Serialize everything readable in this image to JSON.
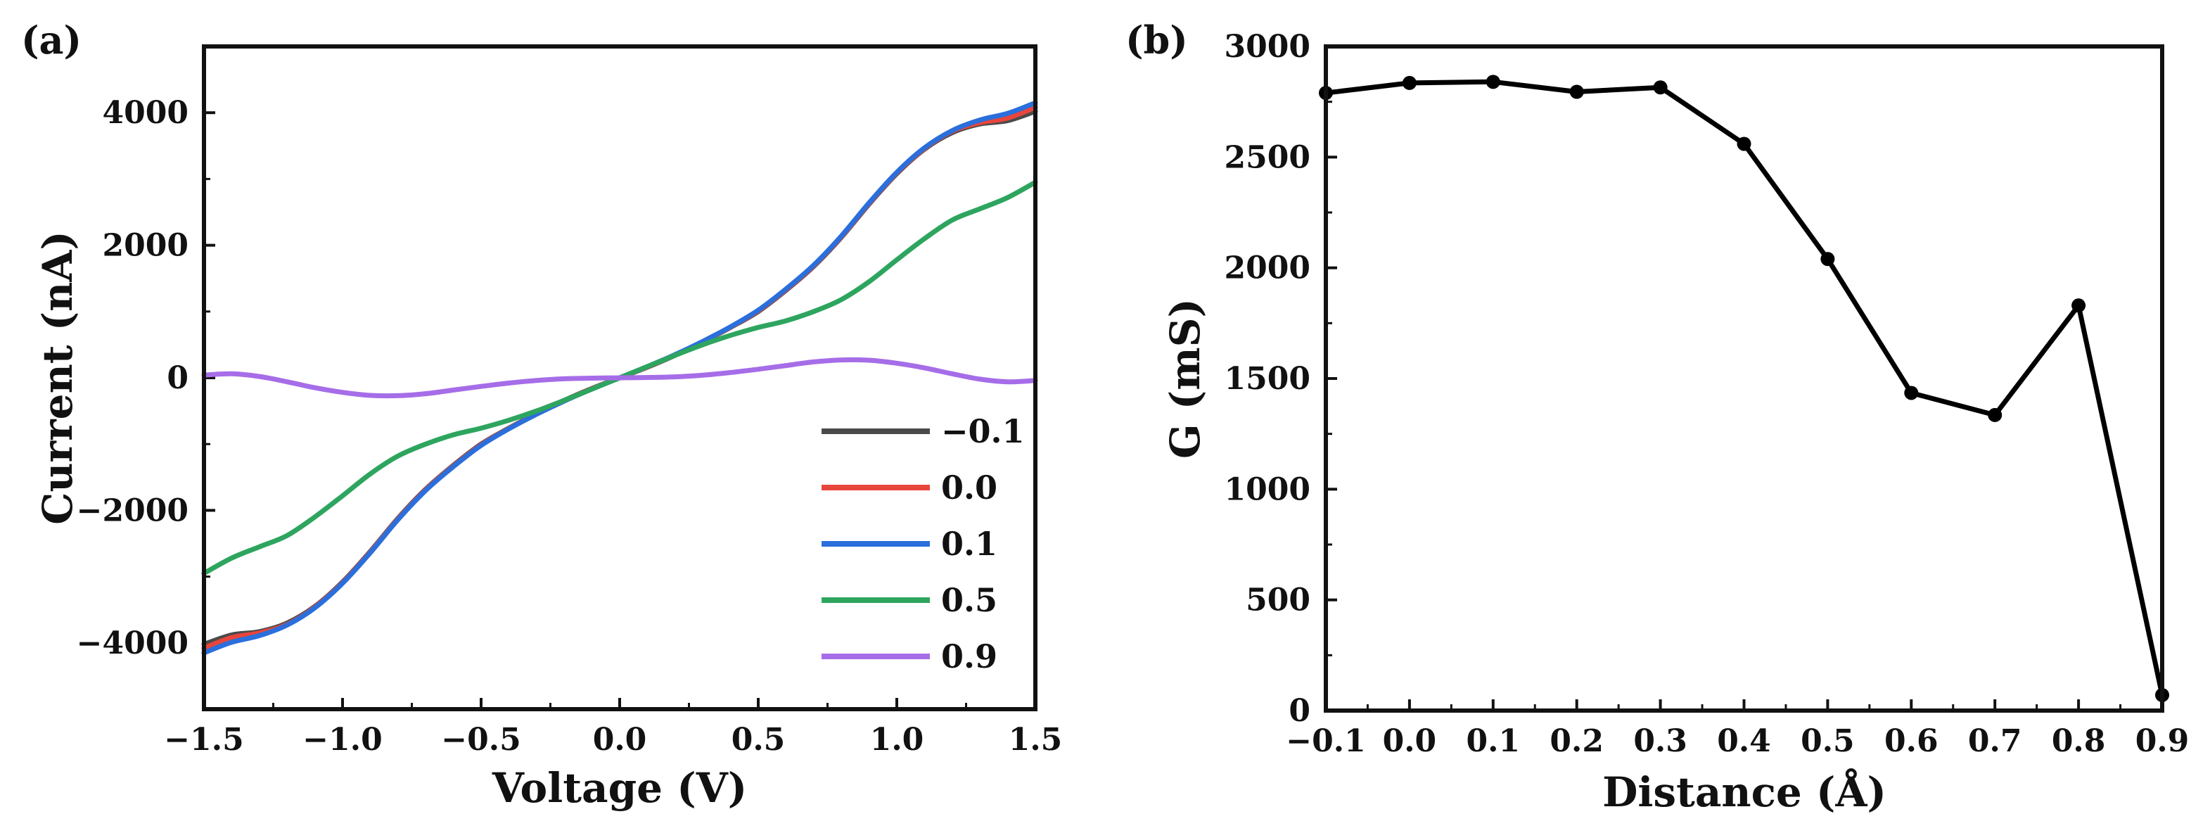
{
  "chart_data": [
    {
      "panel_label": "(a)",
      "type": "line",
      "title": "",
      "xlabel": "Voltage (V)",
      "ylabel": "Current (nA)",
      "xlim": [
        -1.5,
        1.5
      ],
      "ylim": [
        -5000,
        5000
      ],
      "xticks": [
        -1.5,
        -1.0,
        -0.5,
        0.0,
        0.5,
        1.0,
        1.5
      ],
      "xtick_labels": [
        "−1.5",
        "−1.0",
        "−0.5",
        "0.0",
        "0.5",
        "1.0",
        "1.5"
      ],
      "yticks": [
        -4000,
        -2000,
        0,
        2000,
        4000
      ],
      "ytick_labels": [
        "−4000",
        "−2000",
        "0",
        "2000",
        "4000"
      ],
      "legend_position": "bottom-right",
      "series": [
        {
          "name": "−0.1",
          "color": "#4a4a4a",
          "x": [
            -1.5,
            -1.4,
            -1.3,
            -1.2,
            -1.1,
            -1.0,
            -0.9,
            -0.8,
            -0.7,
            -0.6,
            -0.5,
            -0.4,
            -0.3,
            -0.2,
            -0.1,
            0.0,
            0.1,
            0.2,
            0.3,
            0.4,
            0.5,
            0.6,
            0.7,
            0.8,
            0.9,
            1.0,
            1.1,
            1.2,
            1.3,
            1.4,
            1.5
          ],
          "y": [
            -4020,
            -3880,
            -3830,
            -3700,
            -3450,
            -3080,
            -2620,
            -2120,
            -1680,
            -1320,
            -1000,
            -760,
            -540,
            -340,
            -160,
            0,
            160,
            340,
            540,
            760,
            1000,
            1320,
            1680,
            2120,
            2620,
            3080,
            3450,
            3700,
            3830,
            3880,
            4020
          ]
        },
        {
          "name": "0.0",
          "color": "#e8453c",
          "x": [
            -1.5,
            -1.4,
            -1.3,
            -1.2,
            -1.1,
            -1.0,
            -0.9,
            -0.8,
            -0.7,
            -0.6,
            -0.5,
            -0.4,
            -0.3,
            -0.2,
            -0.1,
            0.0,
            0.1,
            0.2,
            0.3,
            0.4,
            0.5,
            0.6,
            0.7,
            0.8,
            0.9,
            1.0,
            1.1,
            1.2,
            1.3,
            1.4,
            1.5
          ],
          "y": [
            -4080,
            -3920,
            -3850,
            -3720,
            -3460,
            -3090,
            -2630,
            -2130,
            -1690,
            -1330,
            -1010,
            -765,
            -545,
            -345,
            -165,
            0,
            165,
            345,
            545,
            765,
            1010,
            1330,
            1690,
            2130,
            2630,
            3090,
            3460,
            3720,
            3850,
            3920,
            4080
          ]
        },
        {
          "name": "0.1",
          "color": "#2a6fdb",
          "x": [
            -1.5,
            -1.4,
            -1.3,
            -1.2,
            -1.1,
            -1.0,
            -0.9,
            -0.8,
            -0.7,
            -0.6,
            -0.5,
            -0.4,
            -0.3,
            -0.2,
            -0.1,
            0.0,
            0.1,
            0.2,
            0.3,
            0.4,
            0.5,
            0.6,
            0.7,
            0.8,
            0.9,
            1.0,
            1.1,
            1.2,
            1.3,
            1.4,
            1.5
          ],
          "y": [
            -4150,
            -3990,
            -3890,
            -3730,
            -3470,
            -3100,
            -2640,
            -2140,
            -1700,
            -1340,
            -1020,
            -770,
            -550,
            -350,
            -170,
            0,
            170,
            350,
            550,
            770,
            1020,
            1340,
            1700,
            2140,
            2640,
            3100,
            3470,
            3730,
            3890,
            3990,
            4150
          ]
        },
        {
          "name": "0.5",
          "color": "#2ea55f",
          "x": [
            -1.5,
            -1.4,
            -1.3,
            -1.2,
            -1.1,
            -1.0,
            -0.9,
            -0.8,
            -0.7,
            -0.6,
            -0.5,
            -0.4,
            -0.3,
            -0.2,
            -0.1,
            0.0,
            0.1,
            0.2,
            0.3,
            0.4,
            0.5,
            0.6,
            0.7,
            0.8,
            0.9,
            1.0,
            1.1,
            1.2,
            1.3,
            1.4,
            1.5
          ],
          "y": [
            -2950,
            -2720,
            -2550,
            -2380,
            -2100,
            -1780,
            -1450,
            -1180,
            -1000,
            -860,
            -760,
            -640,
            -500,
            -340,
            -170,
            0,
            170,
            340,
            500,
            640,
            760,
            860,
            1000,
            1180,
            1450,
            1780,
            2100,
            2380,
            2550,
            2720,
            2950
          ]
        },
        {
          "name": "0.9",
          "color": "#a66de8",
          "x": [
            -1.5,
            -1.4,
            -1.3,
            -1.2,
            -1.1,
            -1.0,
            -0.9,
            -0.8,
            -0.7,
            -0.6,
            -0.5,
            -0.4,
            -0.3,
            -0.2,
            -0.1,
            0.0,
            0.1,
            0.2,
            0.3,
            0.4,
            0.5,
            0.6,
            0.7,
            0.8,
            0.9,
            1.0,
            1.1,
            1.2,
            1.3,
            1.4,
            1.5
          ],
          "y": [
            40,
            60,
            20,
            -60,
            -150,
            -220,
            -265,
            -270,
            -240,
            -185,
            -130,
            -80,
            -40,
            -15,
            -5,
            0,
            5,
            15,
            40,
            80,
            130,
            185,
            240,
            270,
            265,
            220,
            150,
            60,
            -20,
            -60,
            -40
          ]
        }
      ]
    },
    {
      "panel_label": "(b)",
      "type": "line",
      "title": "",
      "xlabel": "Distance (Å)",
      "ylabel": "G (mS)",
      "xlim": [
        -0.1,
        0.9
      ],
      "ylim": [
        0,
        3000
      ],
      "xticks": [
        -0.1,
        0.0,
        0.1,
        0.2,
        0.3,
        0.4,
        0.5,
        0.6,
        0.7,
        0.8,
        0.9
      ],
      "xtick_labels": [
        "−0.1",
        "0.0",
        "0.1",
        "0.2",
        "0.3",
        "0.4",
        "0.5",
        "0.6",
        "0.7",
        "0.8",
        "0.9"
      ],
      "yticks": [
        0,
        500,
        1000,
        1500,
        2000,
        2500,
        3000
      ],
      "ytick_labels": [
        "0",
        "500",
        "1000",
        "1500",
        "2000",
        "2500",
        "3000"
      ],
      "series": [
        {
          "name": "G",
          "color": "#000000",
          "markers": true,
          "x": [
            -0.1,
            0.0,
            0.1,
            0.2,
            0.3,
            0.4,
            0.5,
            0.6,
            0.7,
            0.8,
            0.9
          ],
          "y": [
            2790,
            2835,
            2840,
            2795,
            2815,
            2560,
            2040,
            1435,
            1335,
            1830,
            70
          ]
        }
      ]
    }
  ]
}
